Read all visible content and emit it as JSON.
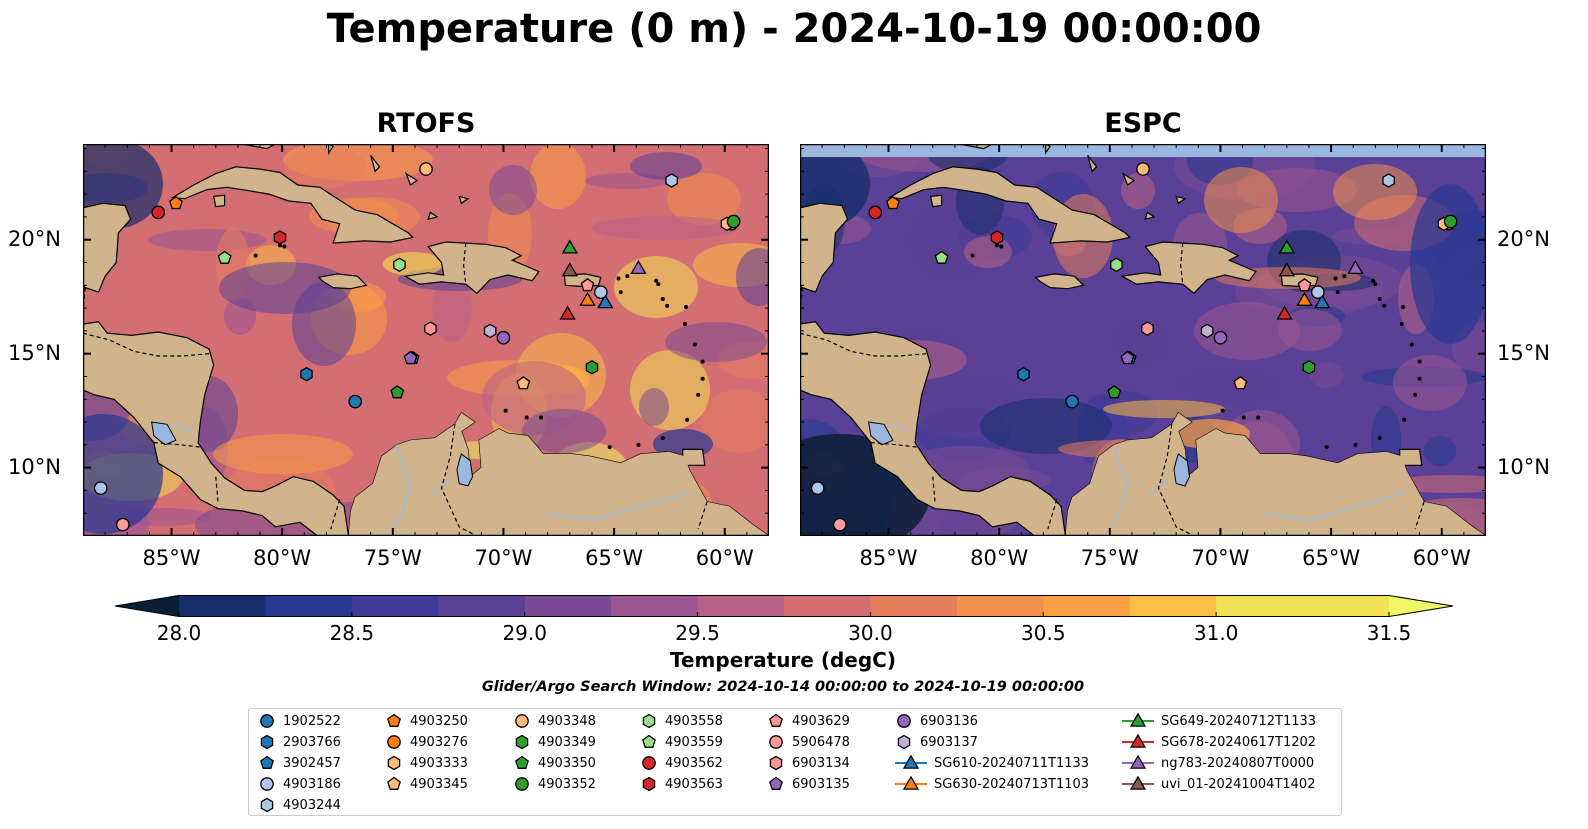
{
  "title": "Temperature (0 m) - 2024-10-19 00:00:00",
  "panels": [
    {
      "name": "RTOFS"
    },
    {
      "name": "ESPC"
    }
  ],
  "map": {
    "lon_range": [
      -89,
      -58
    ],
    "lat_range": [
      7,
      24.2
    ],
    "x_ticks": [
      "85°W",
      "80°W",
      "75°W",
      "70°W",
      "65°W",
      "60°W"
    ],
    "y_ticks": [
      "20°N",
      "15°N",
      "10°N"
    ],
    "colors": {
      "land": "#d2b48c",
      "lake": "#9ab7e0",
      "river": "#a7b9cf",
      "coast": "#000000"
    }
  },
  "colorbar": {
    "label": "Temperature (degC)",
    "ticks": [
      "28.0",
      "28.5",
      "29.0",
      "29.5",
      "30.0",
      "30.5",
      "31.0",
      "31.5"
    ],
    "colors": [
      "#0b1f36",
      "#162e6b",
      "#263891",
      "#3d3a9a",
      "#5a4096",
      "#7a4a94",
      "#9b5592",
      "#b96186",
      "#d36e73",
      "#e67d5b",
      "#f28f4a",
      "#fba143",
      "#fbbd45",
      "#f2e253",
      "#eff864"
    ]
  },
  "search_window": "Glider/Argo Search Window: 2024-10-14 00:00:00 to 2024-10-19 00:00:00",
  "legend": [
    {
      "label": "1902522",
      "shape": "circle",
      "color": "#1f77b4"
    },
    {
      "label": "2903766",
      "shape": "hexagon",
      "color": "#1f77b4"
    },
    {
      "label": "3902457",
      "shape": "pentagon",
      "color": "#1f77b4"
    },
    {
      "label": "4903186",
      "shape": "circle",
      "color": "#aec7e8"
    },
    {
      "label": "4903244",
      "shape": "hexagon",
      "color": "#aec7e8"
    },
    {
      "label": "4903250",
      "shape": "pentagon",
      "color": "#ff7f0e"
    },
    {
      "label": "4903276",
      "shape": "circle",
      "color": "#ff7f0e"
    },
    {
      "label": "4903333",
      "shape": "hexagon",
      "color": "#ffbb78"
    },
    {
      "label": "4903345",
      "shape": "pentagon",
      "color": "#ffbb78"
    },
    {
      "label": "4903348",
      "shape": "circle",
      "color": "#ffbb78"
    },
    {
      "label": "4903349",
      "shape": "hexagon",
      "color": "#2ca02c"
    },
    {
      "label": "4903350",
      "shape": "pentagon",
      "color": "#2ca02c"
    },
    {
      "label": "4903352",
      "shape": "circle",
      "color": "#2ca02c"
    },
    {
      "label": "4903558",
      "shape": "hexagon",
      "color": "#98df8a"
    },
    {
      "label": "4903559",
      "shape": "pentagon",
      "color": "#98df8a"
    },
    {
      "label": "4903562",
      "shape": "circle",
      "color": "#d62728"
    },
    {
      "label": "4903563",
      "shape": "hexagon",
      "color": "#d62728"
    },
    {
      "label": "4903629",
      "shape": "pentagon",
      "color": "#ff9896"
    },
    {
      "label": "5906478",
      "shape": "circle",
      "color": "#ff9896"
    },
    {
      "label": "6903134",
      "shape": "hexagon",
      "color": "#ff9896"
    },
    {
      "label": "6903135",
      "shape": "pentagon",
      "color": "#9467bd"
    },
    {
      "label": "6903136",
      "shape": "circle",
      "color": "#9467bd"
    },
    {
      "label": "6903137",
      "shape": "hexagon",
      "color": "#c5b0d5"
    },
    {
      "label": "SG610-20240711T1133",
      "shape": "triangle",
      "color": "#1f77b4"
    },
    {
      "label": "SG630-20240713T1103",
      "shape": "triangle",
      "color": "#ff7f0e"
    },
    {
      "label": "SG649-20240712T1133",
      "shape": "triangle",
      "color": "#2ca02c"
    },
    {
      "label": "SG678-20240617T1202",
      "shape": "triangle",
      "color": "#d62728"
    },
    {
      "label": "ng783-20240807T0000",
      "shape": "triangle",
      "color": "#9467bd"
    },
    {
      "label": "uvi_01-20241004T1402",
      "shape": "triangle",
      "color": "#8c564b"
    }
  ],
  "floats": [
    {
      "id": "1902522",
      "lon": -76.7,
      "lat": 12.9
    },
    {
      "id": "2903766",
      "lon": -78.9,
      "lat": 14.1
    },
    {
      "id": "3902457",
      "lon": -74.1,
      "lat": 14.8
    },
    {
      "id": "4903186",
      "lon": -88.2,
      "lat": 9.1
    },
    {
      "id": "4903244",
      "lon": -62.4,
      "lat": 22.6
    },
    {
      "id": "4903250",
      "lon": -84.8,
      "lat": 21.6
    },
    {
      "id": "4903276",
      "lon": -59.7,
      "lat": 20.7
    },
    {
      "id": "4903333",
      "lon": -59.9,
      "lat": 20.7
    },
    {
      "id": "4903345",
      "lon": -69.1,
      "lat": 13.7
    },
    {
      "id": "4903348",
      "lon": -73.5,
      "lat": 23.1
    },
    {
      "id": "4903349",
      "lon": -66.0,
      "lat": 14.4
    },
    {
      "id": "4903350",
      "lon": -74.8,
      "lat": 13.3
    },
    {
      "id": "4903352",
      "lon": -59.6,
      "lat": 20.8
    },
    {
      "id": "4903558",
      "lon": -74.7,
      "lat": 18.9
    },
    {
      "id": "4903559",
      "lon": -82.6,
      "lat": 19.2
    },
    {
      "id": "4903562",
      "lon": -85.6,
      "lat": 21.2
    },
    {
      "id": "4903563",
      "lon": -80.1,
      "lat": 20.1
    },
    {
      "id": "4903629",
      "lon": -66.2,
      "lat": 18.0
    },
    {
      "id": "5906478",
      "lon": -87.2,
      "lat": 7.5
    },
    {
      "id": "6903134",
      "lon": -73.3,
      "lat": 16.1
    },
    {
      "id": "6903135",
      "lon": -74.2,
      "lat": 14.8
    },
    {
      "id": "6903136",
      "lon": -70.0,
      "lat": 15.7
    },
    {
      "id": "6903137",
      "lon": -70.6,
      "lat": 16.0
    },
    {
      "id": "SG610-20240711T1133",
      "lon": -65.4,
      "lat": 17.2
    },
    {
      "id": "SG630-20240713T1103",
      "lon": -66.2,
      "lat": 17.3
    },
    {
      "id": "SG649-20240712T1133",
      "lon": -67.0,
      "lat": 19.6
    },
    {
      "id": "SG678-20240617T1202",
      "lon": -67.1,
      "lat": 16.7
    },
    {
      "id": "ng783-20240807T0000",
      "lon": -63.9,
      "lat": 18.7
    },
    {
      "id": "uvi_01-20241004T1402",
      "lon": -67.0,
      "lat": 18.6
    },
    {
      "id": "4903186b",
      "lon": -65.6,
      "lat": 17.7
    }
  ]
}
